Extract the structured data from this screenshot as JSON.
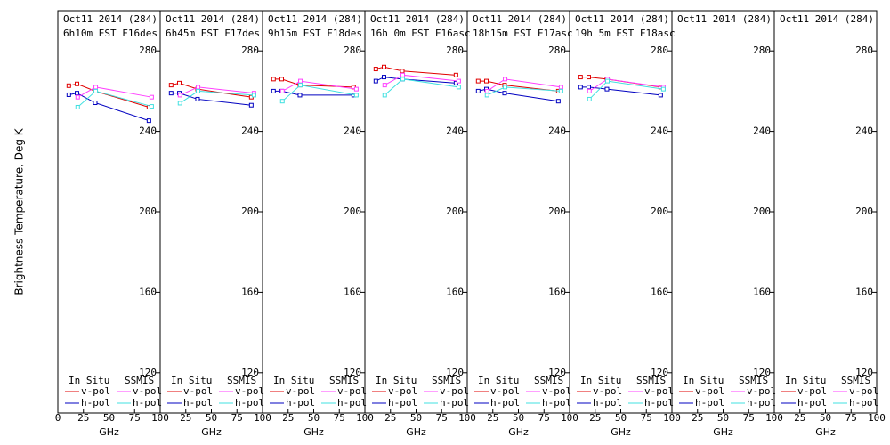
{
  "chart_data": [
    {
      "type": "line",
      "title": "Oct11 2014 (284)",
      "subtitle": "6h10m EST F16des",
      "ylabel": "Brightness Temperature, Deg K",
      "xlabel": "GHz",
      "xlim": [
        0,
        100
      ],
      "xticks": [
        0,
        25,
        50,
        75,
        100
      ],
      "ylim": [
        100,
        300
      ],
      "yticks": [
        120,
        160,
        200,
        240,
        280
      ],
      "series": [
        {
          "name": "v-pol",
          "group": "In Situ",
          "color": "#e00000",
          "x": [
            10.7,
            18.7,
            36.5,
            89
          ],
          "values": [
            262.7,
            263.6,
            260,
            252
          ]
        },
        {
          "name": "h-pol",
          "color": "#0000c0",
          "x": [
            10.7,
            18.7,
            36.5,
            89
          ],
          "values": [
            258.2,
            259,
            254.2,
            245.3
          ]
        },
        {
          "name": "v-pol",
          "group": "SSMIS",
          "color": "#ff40ff",
          "x": [
            19.35,
            37,
            91.65
          ],
          "values": [
            257,
            262,
            257
          ]
        },
        {
          "name": "h-pol",
          "color": "#40e0e0",
          "x": [
            19.35,
            37,
            91.65
          ],
          "values": [
            252,
            260,
            252.4
          ]
        }
      ]
    },
    {
      "type": "line",
      "title": "Oct11 2014 (284)",
      "subtitle": "6h45m EST F17des",
      "xlabel": "GHz",
      "xlim": [
        0,
        100
      ],
      "xticks": [
        25,
        50,
        75,
        100
      ],
      "ylim": [
        100,
        300
      ],
      "yticks": [
        120,
        160,
        200,
        240,
        280
      ],
      "series": [
        {
          "name": "v-pol",
          "group": "In Situ",
          "color": "#e00000",
          "x": [
            10.7,
            18.7,
            36.5,
            89
          ],
          "values": [
            263,
            264,
            261,
            257
          ]
        },
        {
          "name": "h-pol",
          "color": "#0000c0",
          "x": [
            10.7,
            18.7,
            36.5,
            89
          ],
          "values": [
            259,
            259,
            256,
            253
          ]
        },
        {
          "name": "v-pol",
          "group": "SSMIS",
          "color": "#ff40ff",
          "x": [
            19.35,
            37,
            91.65
          ],
          "values": [
            258,
            262,
            259
          ]
        },
        {
          "name": "h-pol",
          "color": "#40e0e0",
          "x": [
            19.35,
            37,
            91.65
          ],
          "values": [
            254,
            260,
            258
          ]
        }
      ]
    },
    {
      "type": "line",
      "title": "Oct11 2014 (284)",
      "subtitle": "9h15m EST F18des",
      "xlabel": "GHz",
      "xlim": [
        0,
        100
      ],
      "xticks": [
        25,
        50,
        75,
        100
      ],
      "ylim": [
        100,
        300
      ],
      "yticks": [
        120,
        160,
        200,
        240,
        280
      ],
      "series": [
        {
          "name": "v-pol",
          "group": "In Situ",
          "color": "#e00000",
          "x": [
            10.7,
            18.7,
            36.5,
            89
          ],
          "values": [
            266,
            266,
            263,
            262
          ]
        },
        {
          "name": "h-pol",
          "color": "#0000c0",
          "x": [
            10.7,
            18.7,
            36.5,
            89
          ],
          "values": [
            260,
            260,
            258,
            258
          ]
        },
        {
          "name": "v-pol",
          "group": "SSMIS",
          "color": "#ff40ff",
          "x": [
            19.35,
            37,
            91.65
          ],
          "values": [
            260,
            265,
            261
          ]
        },
        {
          "name": "h-pol",
          "color": "#40e0e0",
          "x": [
            19.35,
            37,
            91.65
          ],
          "values": [
            255,
            263,
            258
          ]
        }
      ]
    },
    {
      "type": "line",
      "title": "Oct11 2014 (284)",
      "subtitle": "16h 0m EST F16asc",
      "xlabel": "GHz",
      "xlim": [
        0,
        100
      ],
      "xticks": [
        25,
        50,
        75,
        100
      ],
      "ylim": [
        100,
        300
      ],
      "yticks": [
        120,
        160,
        200,
        240,
        280
      ],
      "series": [
        {
          "name": "v-pol",
          "group": "In Situ",
          "color": "#e00000",
          "x": [
            10.7,
            18.7,
            36.5,
            89
          ],
          "values": [
            271,
            272,
            270,
            268
          ]
        },
        {
          "name": "h-pol",
          "color": "#0000c0",
          "x": [
            10.7,
            18.7,
            36.5,
            89
          ],
          "values": [
            265,
            267,
            266,
            264
          ]
        },
        {
          "name": "v-pol",
          "group": "SSMIS",
          "color": "#ff40ff",
          "x": [
            19.35,
            37,
            91.65
          ],
          "values": [
            263,
            268,
            265
          ]
        },
        {
          "name": "h-pol",
          "color": "#40e0e0",
          "x": [
            19.35,
            37,
            91.65
          ],
          "values": [
            258,
            266,
            262
          ]
        }
      ]
    },
    {
      "type": "line",
      "title": "Oct11 2014 (284)",
      "subtitle": "18h15m EST F17asc",
      "xlabel": "GHz",
      "xlim": [
        0,
        100
      ],
      "xticks": [
        25,
        50,
        75,
        100
      ],
      "ylim": [
        100,
        300
      ],
      "yticks": [
        120,
        160,
        200,
        240,
        280
      ],
      "series": [
        {
          "name": "v-pol",
          "group": "In Situ",
          "color": "#e00000",
          "x": [
            10.7,
            18.7,
            36.5,
            89
          ],
          "values": [
            265,
            265,
            263,
            260
          ]
        },
        {
          "name": "h-pol",
          "color": "#0000c0",
          "x": [
            10.7,
            18.7,
            36.5,
            89
          ],
          "values": [
            260,
            261,
            259,
            255
          ]
        },
        {
          "name": "v-pol",
          "group": "SSMIS",
          "color": "#ff40ff",
          "x": [
            19.35,
            37,
            91.65
          ],
          "values": [
            260,
            266,
            262
          ]
        },
        {
          "name": "h-pol",
          "color": "#40e0e0",
          "x": [
            19.35,
            37,
            91.65
          ],
          "values": [
            258,
            262,
            260
          ]
        }
      ]
    },
    {
      "type": "line",
      "title": "Oct11 2014 (284)",
      "subtitle": "19h 5m EST F18asc",
      "xlabel": "GHz",
      "xlim": [
        0,
        100
      ],
      "xticks": [
        25,
        50,
        75,
        100
      ],
      "ylim": [
        100,
        300
      ],
      "yticks": [
        120,
        160,
        200,
        240,
        280
      ],
      "series": [
        {
          "name": "v-pol",
          "group": "In Situ",
          "color": "#e00000",
          "x": [
            10.7,
            18.7,
            36.5,
            89
          ],
          "values": [
            267,
            267,
            266,
            262
          ]
        },
        {
          "name": "h-pol",
          "color": "#0000c0",
          "x": [
            10.7,
            18.7,
            36.5,
            89
          ],
          "values": [
            262,
            262,
            261,
            258
          ]
        },
        {
          "name": "v-pol",
          "group": "SSMIS",
          "color": "#ff40ff",
          "x": [
            19.35,
            37,
            91.65
          ],
          "values": [
            260,
            266,
            262
          ]
        },
        {
          "name": "h-pol",
          "color": "#40e0e0",
          "x": [
            19.35,
            37,
            91.65
          ],
          "values": [
            256,
            265,
            261
          ]
        }
      ]
    },
    {
      "type": "line",
      "title": "Oct11 2014 (284)",
      "xlabel": "GHz",
      "xlim": [
        0,
        100
      ],
      "xticks": [
        25,
        50,
        75,
        100
      ],
      "ylim": [
        100,
        300
      ],
      "yticks": [
        120,
        160,
        200,
        240,
        280
      ],
      "series": [
        {
          "name": "v-pol",
          "group": "In Situ",
          "color": "#e00000",
          "x": [],
          "values": []
        },
        {
          "name": "h-pol",
          "color": "#0000c0",
          "x": [],
          "values": []
        },
        {
          "name": "v-pol",
          "group": "SSMIS",
          "color": "#ff40ff",
          "x": [],
          "values": []
        },
        {
          "name": "h-pol",
          "color": "#40e0e0",
          "x": [],
          "values": []
        }
      ]
    },
    {
      "type": "line",
      "title": "Oct11 2014 (284)",
      "xlabel": "GHz",
      "xlim": [
        0,
        100
      ],
      "xticks": [
        25,
        50,
        75,
        100
      ],
      "ylim": [
        100,
        300
      ],
      "yticks": [
        120,
        160,
        200,
        240,
        280
      ],
      "series": [
        {
          "name": "v-pol",
          "group": "In Situ",
          "color": "#e00000",
          "x": [],
          "values": []
        },
        {
          "name": "h-pol",
          "color": "#0000c0",
          "x": [],
          "values": []
        },
        {
          "name": "v-pol",
          "group": "SSMIS",
          "color": "#ff40ff",
          "x": [],
          "values": []
        },
        {
          "name": "h-pol",
          "color": "#40e0e0",
          "x": [],
          "values": []
        }
      ]
    }
  ]
}
